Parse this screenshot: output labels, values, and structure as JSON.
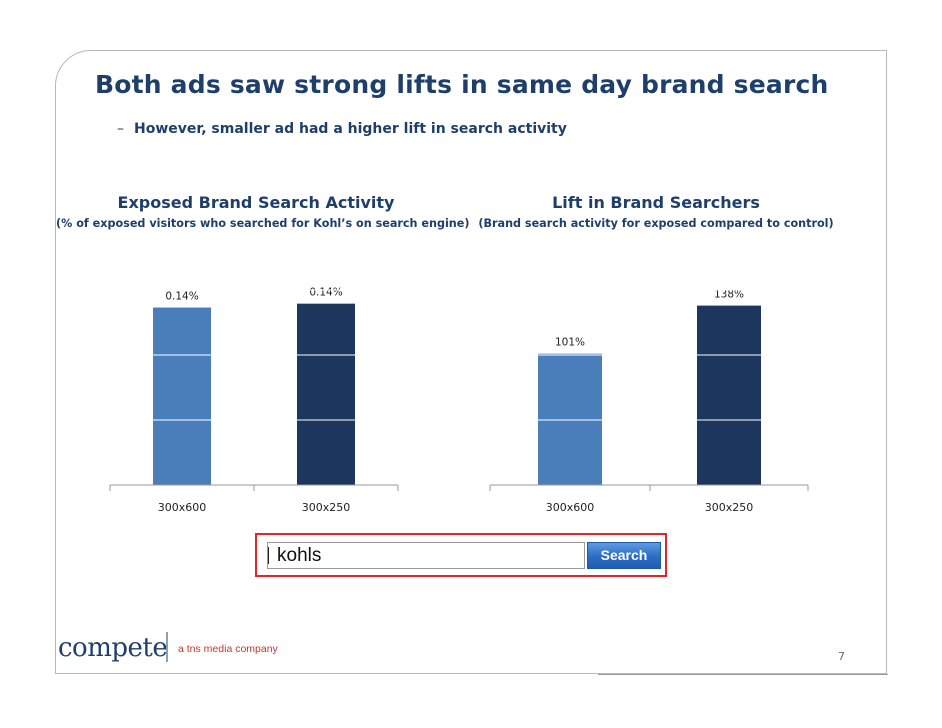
{
  "slide": {
    "title": "Both ads saw strong lifts in same day brand search",
    "subtitle_dash": "–",
    "subtitle": "However, smaller ad had a higher lift in search activity",
    "page_number": "7"
  },
  "search": {
    "query": "kohls",
    "button_label": "Search"
  },
  "logo": {
    "brand": "compete",
    "tagline": "a tns media company"
  },
  "colors": {
    "light_bar": "#4a7ebb",
    "dark_bar": "#1c365d",
    "title_text": "#1f3f6b"
  },
  "chart_data": [
    {
      "type": "bar",
      "title": "Exposed Brand Search Activity",
      "subtitle": "(% of exposed visitors who searched for Kohl’s on search engine)",
      "categories": [
        "300x600",
        "300x250"
      ],
      "values": [
        0.1365,
        0.1395
      ],
      "value_labels": [
        "0.14%",
        "0.14%"
      ],
      "ylim": [
        0,
        0.2
      ],
      "grid": true
    },
    {
      "type": "bar",
      "title": "Lift in Brand Searchers",
      "subtitle": "(Brand search activity for exposed compared to control)",
      "categories": [
        "300x600",
        "300x250"
      ],
      "values": [
        101,
        138
      ],
      "value_labels": [
        "101%",
        "138%"
      ],
      "ylim": [
        0,
        200
      ],
      "grid": true
    }
  ]
}
